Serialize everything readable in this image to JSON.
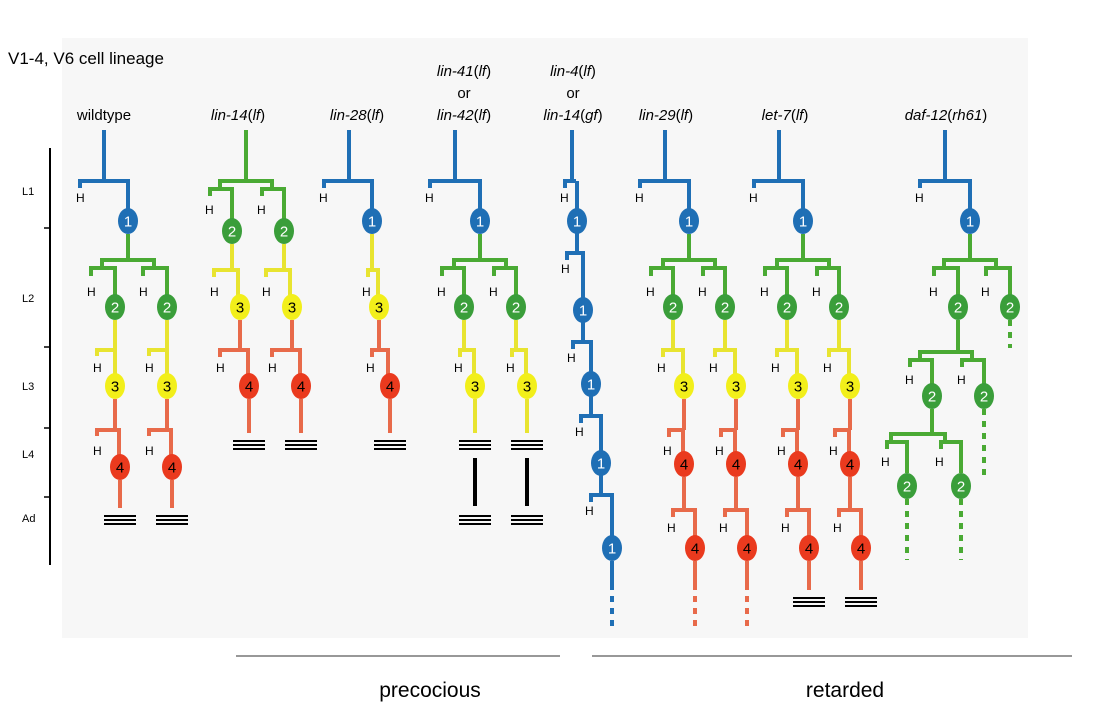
{
  "title": "V1-4, V6 cell lineage",
  "stages": [
    "L1",
    "L2",
    "L3",
    "L4",
    "Ad"
  ],
  "hypodermal_label": "H",
  "colors": {
    "fate1": "#1f6fb5",
    "fate2": "#3a9e3a",
    "fate3": "#f2ef1a",
    "fate4": "#ea3a1e",
    "fate2_line": "#4aaa34",
    "fate3_line": "#e8e430",
    "fate4_line": "#e86a4a"
  },
  "genotypes": [
    {
      "id": "wildtype",
      "lines": [
        [
          {
            "t": "wildtype",
            "i": false
          }
        ]
      ]
    },
    {
      "id": "lin-14-lf",
      "lines": [
        [
          {
            "t": "lin-14",
            "i": true
          },
          {
            "t": "(",
            "i": false
          },
          {
            "t": "lf",
            "i": true
          },
          {
            "t": ")",
            "i": false
          }
        ]
      ]
    },
    {
      "id": "lin-28-lf",
      "lines": [
        [
          {
            "t": "lin-28",
            "i": true
          },
          {
            "t": "(",
            "i": false
          },
          {
            "t": "lf",
            "i": true
          },
          {
            "t": ")",
            "i": false
          }
        ]
      ]
    },
    {
      "id": "lin-41-or-lin-42-lf",
      "lines": [
        [
          {
            "t": "lin-41",
            "i": true
          },
          {
            "t": "(",
            "i": false
          },
          {
            "t": "lf",
            "i": true
          },
          {
            "t": ")",
            "i": false
          }
        ],
        [
          {
            "t": "or",
            "i": false
          }
        ],
        [
          {
            "t": "lin-42",
            "i": true
          },
          {
            "t": "(",
            "i": false
          },
          {
            "t": "lf",
            "i": true
          },
          {
            "t": ")",
            "i": false
          }
        ]
      ]
    },
    {
      "id": "lin-4-lf-or-lin-14-gf",
      "lines": [
        [
          {
            "t": "lin-4",
            "i": true
          },
          {
            "t": "(",
            "i": false
          },
          {
            "t": "lf",
            "i": true
          },
          {
            "t": ")",
            "i": false
          }
        ],
        [
          {
            "t": "or",
            "i": false
          }
        ],
        [
          {
            "t": "lin-14",
            "i": true
          },
          {
            "t": "(",
            "i": false
          },
          {
            "t": "gf",
            "i": true
          },
          {
            "t": ")",
            "i": false
          }
        ]
      ]
    },
    {
      "id": "lin-29-lf",
      "lines": [
        [
          {
            "t": "lin-29",
            "i": true
          },
          {
            "t": "(",
            "i": false
          },
          {
            "t": "lf",
            "i": true
          },
          {
            "t": ")",
            "i": false
          }
        ]
      ]
    },
    {
      "id": "let-7-lf",
      "lines": [
        [
          {
            "t": "let-7",
            "i": true
          },
          {
            "t": "(",
            "i": false
          },
          {
            "t": "lf",
            "i": true
          },
          {
            "t": ")",
            "i": false
          }
        ]
      ]
    },
    {
      "id": "daf-12-rh61",
      "lines": [
        [
          {
            "t": "daf-12",
            "i": true
          },
          {
            "t": "(",
            "i": false
          },
          {
            "t": "rh61",
            "i": true
          },
          {
            "t": ")",
            "i": false
          }
        ]
      ]
    }
  ],
  "groups": {
    "precocious": "precocious",
    "retarded": "retarded"
  }
}
